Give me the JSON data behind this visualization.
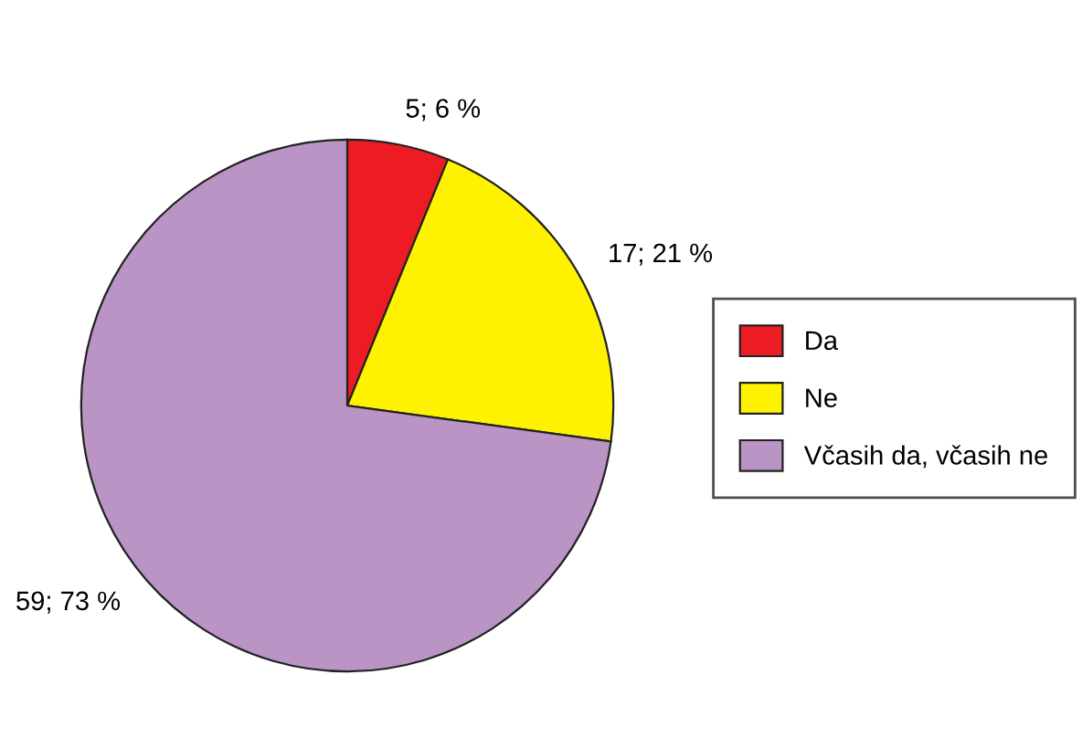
{
  "chart_data": {
    "type": "pie",
    "categories": [
      "Da",
      "Ne",
      "Včasih da, včasih ne"
    ],
    "values": [
      5,
      17,
      59
    ],
    "colors": [
      "#ed1c24",
      "#fff200",
      "#b994c4"
    ],
    "value_labels": [
      "5; 6 %",
      "17; 21 %",
      "59; 73 %"
    ],
    "legend": "right"
  }
}
